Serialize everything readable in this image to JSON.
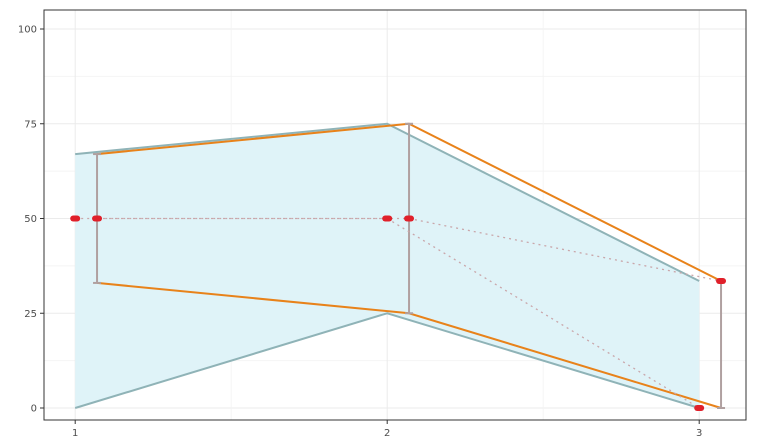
{
  "chart_data": {
    "type": "line",
    "x": [
      1,
      2,
      3
    ],
    "xticks": [
      "1",
      "2",
      "3"
    ],
    "yticks": [
      "0",
      "25",
      "50",
      "75",
      "100"
    ],
    "ylim": [
      0,
      100
    ],
    "xlim": [
      0.9,
      3.15
    ],
    "grid": true,
    "legend": "none",
    "series": [
      {
        "style": "band",
        "x": [
          1,
          2,
          3
        ],
        "upper": [
          67,
          75,
          33.5
        ],
        "lower": [
          0,
          25,
          0
        ],
        "fill": "#dff3f8",
        "stroke": "#8fb3b7"
      },
      {
        "style": "band",
        "x": [
          1.07,
          2.07,
          3.07
        ],
        "upper": [
          67,
          75,
          33.5
        ],
        "lower": [
          33,
          25,
          0
        ],
        "stroke": "#e8821a"
      },
      {
        "style": "errorbars",
        "x": [
          1.07,
          2.07,
          3.07
        ],
        "upper": [
          67,
          75,
          33.5
        ],
        "lower": [
          33,
          25,
          0
        ],
        "stroke": "#b0a0a0"
      },
      {
        "style": "points",
        "x": [
          1,
          2,
          3
        ],
        "y": [
          50,
          50,
          0
        ],
        "color": "#e0202a",
        "connector": "dotted"
      },
      {
        "style": "points",
        "x": [
          1.07,
          2.07,
          3.07
        ],
        "y": [
          50,
          50,
          33.5
        ],
        "color": "#e0202a",
        "connector": "dotted"
      }
    ]
  }
}
